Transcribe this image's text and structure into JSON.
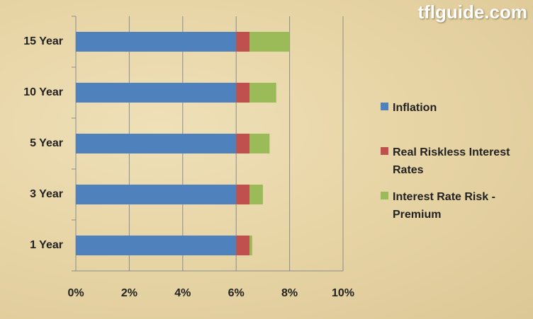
{
  "chart_data": {
    "type": "stacked-barh",
    "watermark": "tflguide.com",
    "categories": [
      "15 Year",
      "10 Year",
      "5 Year",
      "3 Year",
      "1 Year"
    ],
    "series": [
      {
        "name": "Inflation",
        "color": "#4f81bd",
        "values": [
          6,
          6,
          6,
          6,
          6
        ]
      },
      {
        "name": "Real Riskless Interest Rates",
        "color": "#c0504d",
        "values": [
          0.5,
          0.5,
          0.5,
          0.5,
          0.5
        ]
      },
      {
        "name": "Interest Rate Risk - Premium",
        "color": "#9bbb59",
        "values": [
          1.5,
          1.0,
          0.75,
          0.5,
          0.1
        ]
      }
    ],
    "xlim": [
      0,
      10
    ],
    "xticks": [
      {
        "value": 0,
        "label": "0%"
      },
      {
        "value": 2,
        "label": "2%"
      },
      {
        "value": 4,
        "label": "4%"
      },
      {
        "value": 6,
        "label": "6%"
      },
      {
        "value": 8,
        "label": "8%"
      },
      {
        "value": 10,
        "label": "10%"
      }
    ],
    "grid": true
  }
}
